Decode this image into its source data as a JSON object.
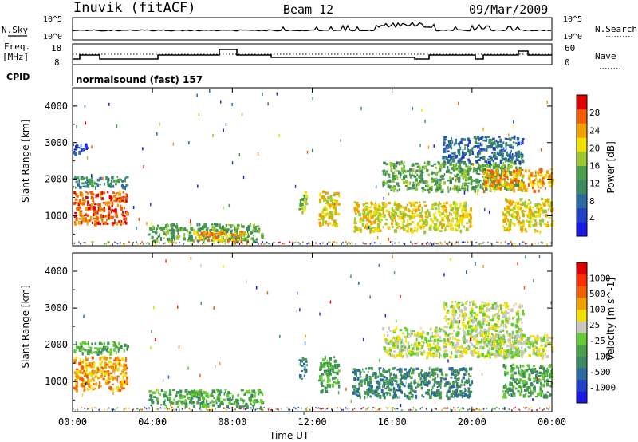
{
  "header": {
    "station": "Inuvik (fitACF)",
    "beam": "Beam 12",
    "date": "09/Mar/2009"
  },
  "noise_panel": {
    "left_label": "N.Sky",
    "right_label": "N.Search",
    "left_ticks": [
      "10^5",
      "10^0"
    ],
    "right_ticks": [
      "10^5",
      "10^0"
    ]
  },
  "freq_panel": {
    "left_label_1": "Freq.",
    "left_label_2": "[MHz]",
    "right_label": "Nave",
    "left_ticks": [
      "18",
      "8"
    ],
    "right_ticks": [
      "60",
      "0"
    ],
    "cpid_label": "CPID",
    "mode": "normalsound (fast) 157"
  },
  "colors": {
    "power_scale": [
      "#1a1ae6",
      "#2040c8",
      "#2a6aa0",
      "#3c8a60",
      "#4aa048",
      "#9ac830",
      "#f0e000",
      "#f0a000",
      "#f06000",
      "#e00000"
    ],
    "velocity_scale": [
      "#1a1ae6",
      "#2040c8",
      "#2a6aa0",
      "#3c8a60",
      "#4aa048",
      "#66cc33",
      "#c8c8c0",
      "#f0e000",
      "#f0a000",
      "#f06000",
      "#ff3000",
      "#e00000"
    ]
  },
  "chart_data": [
    {
      "type": "heatmap",
      "title": "",
      "xlabel": "",
      "ylabel": "Slant Range [km]",
      "x_ticks": [
        "00:00",
        "04:00",
        "08:00",
        "12:00",
        "16:00",
        "20:00",
        "00:00"
      ],
      "y_ticks": [
        "1000",
        "2000",
        "3000",
        "4000"
      ],
      "ylim": [
        180,
        4500
      ],
      "x_range_hours": [
        0,
        24
      ],
      "colorbar_label": "Power [dB]",
      "colorbar_ticks": [
        "4",
        "8",
        "12",
        "16",
        "20",
        "24",
        "28"
      ],
      "regions": [
        {
          "t0": 0.0,
          "t1": 2.7,
          "r0": 800,
          "r1": 1700,
          "level": 8
        },
        {
          "t0": 0.0,
          "t1": 2.7,
          "r0": 1800,
          "r1": 2100,
          "level": 3
        },
        {
          "t0": 0.0,
          "t1": 0.7,
          "r0": 2700,
          "r1": 3000,
          "level": 1
        },
        {
          "t0": 3.8,
          "t1": 9.5,
          "r0": 330,
          "r1": 800,
          "level": 4
        },
        {
          "t0": 6.0,
          "t1": 8.5,
          "r0": 330,
          "r1": 600,
          "level": 7
        },
        {
          "t0": 11.3,
          "t1": 11.7,
          "r0": 1100,
          "r1": 1700,
          "level": 5
        },
        {
          "t0": 12.3,
          "t1": 13.3,
          "r0": 750,
          "r1": 1700,
          "level": 6
        },
        {
          "t0": 14.0,
          "t1": 20.0,
          "r0": 600,
          "r1": 1400,
          "level": 6
        },
        {
          "t0": 15.5,
          "t1": 22.5,
          "r0": 1700,
          "r1": 2500,
          "level": 4
        },
        {
          "t0": 18.5,
          "t1": 22.5,
          "r0": 2500,
          "r1": 3200,
          "level": 2
        },
        {
          "t0": 20.5,
          "t1": 24.0,
          "r0": 1700,
          "r1": 2300,
          "level": 7
        },
        {
          "t0": 21.5,
          "t1": 24.0,
          "r0": 600,
          "r1": 1500,
          "level": 6
        }
      ]
    },
    {
      "type": "heatmap",
      "title": "",
      "xlabel": "Time UT",
      "ylabel": "Slant Range [km]",
      "x_ticks": [
        "00:00",
        "04:00",
        "08:00",
        "12:00",
        "16:00",
        "20:00",
        "00:00"
      ],
      "y_ticks": [
        "1000",
        "2000",
        "3000",
        "4000"
      ],
      "ylim": [
        180,
        4500
      ],
      "x_range_hours": [
        0,
        24
      ],
      "colorbar_label": "Velocity [m s^-1]",
      "colorbar_ticks": [
        "1000",
        "500",
        "100",
        "25",
        "-25",
        "-100",
        "-500",
        "-1000"
      ],
      "regions": [
        {
          "t0": 0.0,
          "t1": 2.7,
          "r0": 800,
          "r1": 1700,
          "level": 8
        },
        {
          "t0": 0.0,
          "t1": 2.7,
          "r0": 1800,
          "r1": 2100,
          "level": 4
        },
        {
          "t0": 3.8,
          "t1": 9.5,
          "r0": 330,
          "r1": 800,
          "level": 4
        },
        {
          "t0": 11.3,
          "t1": 11.7,
          "r0": 1100,
          "r1": 1700,
          "level": 3
        },
        {
          "t0": 12.3,
          "t1": 13.3,
          "r0": 750,
          "r1": 1700,
          "level": 4
        },
        {
          "t0": 14.0,
          "t1": 20.0,
          "r0": 600,
          "r1": 1400,
          "level": 3
        },
        {
          "t0": 15.5,
          "t1": 22.5,
          "r0": 1700,
          "r1": 2500,
          "level": 6
        },
        {
          "t0": 18.5,
          "t1": 22.5,
          "r0": 2500,
          "r1": 3200,
          "level": 6
        },
        {
          "t0": 20.5,
          "t1": 24.0,
          "r0": 1700,
          "r1": 2300,
          "level": 6
        },
        {
          "t0": 21.5,
          "t1": 24.0,
          "r0": 600,
          "r1": 1500,
          "level": 4
        }
      ]
    }
  ]
}
